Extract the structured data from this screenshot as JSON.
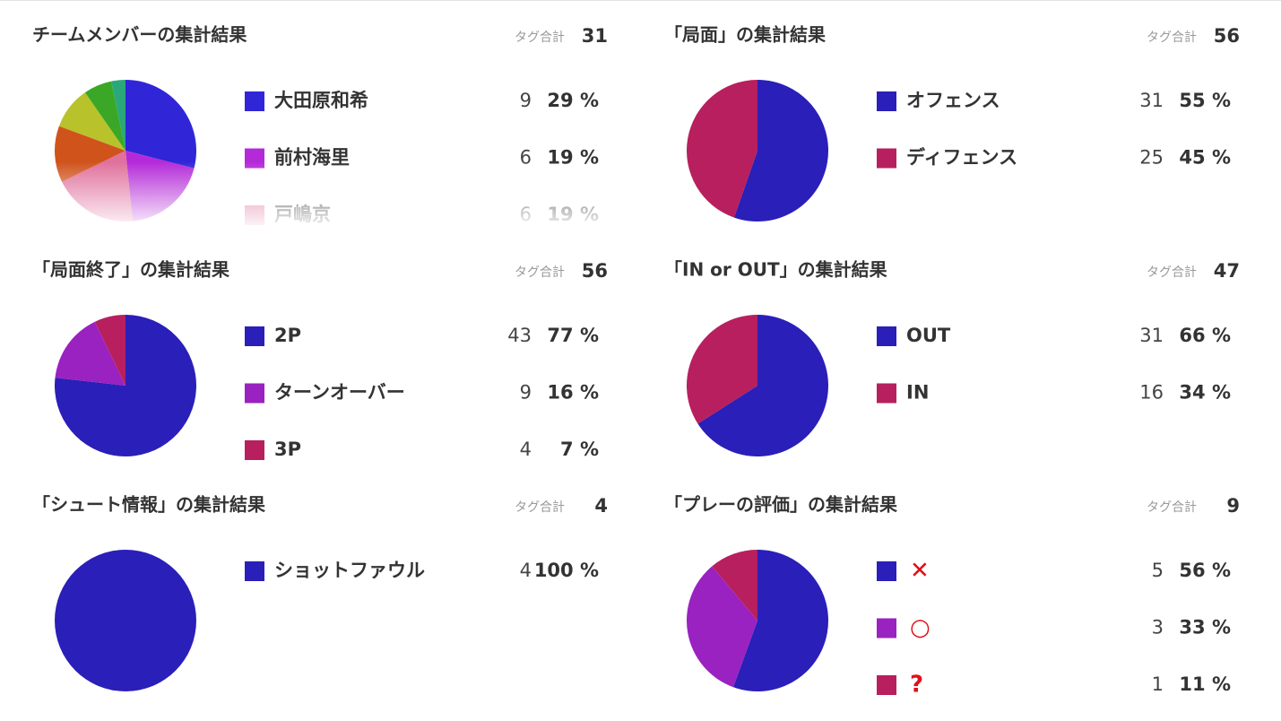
{
  "chart_data": [
    {
      "type": "pie",
      "title": "チームメンバーの集計結果",
      "total_label": "タグ合計",
      "total": 31,
      "categories": [
        "大田原和希",
        "前村海里",
        "戸嶋京",
        null,
        null,
        null,
        null
      ],
      "values": [
        9,
        6,
        6,
        4,
        3,
        2,
        1
      ],
      "value_labels": [
        "29 %",
        "19 %",
        "19 %",
        null,
        null,
        null,
        null
      ],
      "colors": [
        "#3026d8",
        "#b42ad8",
        "#e0709c",
        "#d0531c",
        "#b8c22a",
        "#3aa826",
        "#2aa87a"
      ]
    },
    {
      "type": "pie",
      "title": "「局面」の集計結果",
      "total_label": "タグ合計",
      "total": 56,
      "categories": [
        "オフェンス",
        "ディフェンス"
      ],
      "values": [
        31,
        25
      ],
      "value_labels": [
        "55 %",
        "45 %"
      ],
      "colors": [
        "#2a1fb8",
        "#b81f5e"
      ]
    },
    {
      "type": "pie",
      "title": "「局面終了」の集計結果",
      "total_label": "タグ合計",
      "total": 56,
      "categories": [
        "2P",
        "ターンオーバー",
        "3P"
      ],
      "values": [
        43,
        9,
        4
      ],
      "value_labels": [
        "77 %",
        "16 %",
        "7 %"
      ],
      "colors": [
        "#2a1fb8",
        "#9a22c0",
        "#b81f5e"
      ]
    },
    {
      "type": "pie",
      "title": "「IN or OUT」の集計結果",
      "total_label": "タグ合計",
      "total": 47,
      "categories": [
        "OUT",
        "IN"
      ],
      "values": [
        31,
        16
      ],
      "value_labels": [
        "66 %",
        "34 %"
      ],
      "colors": [
        "#2a1fb8",
        "#b81f5e"
      ]
    },
    {
      "type": "pie",
      "title": "「シュート情報」の集計結果",
      "total_label": "タグ合計",
      "total": 4,
      "categories": [
        "ショットファウル"
      ],
      "values": [
        4
      ],
      "value_labels": [
        "100 %"
      ],
      "colors": [
        "#2a1fb8"
      ]
    },
    {
      "type": "pie",
      "title": "「プレーの評価」の集計結果",
      "total_label": "タグ合計",
      "total": 9,
      "categories": [
        "✕",
        "○",
        "?"
      ],
      "values": [
        5,
        3,
        1
      ],
      "value_labels": [
        "56 %",
        "33 %",
        "11 %"
      ],
      "colors": [
        "#2a1fb8",
        "#9a22c0",
        "#b81f5e"
      ]
    }
  ]
}
